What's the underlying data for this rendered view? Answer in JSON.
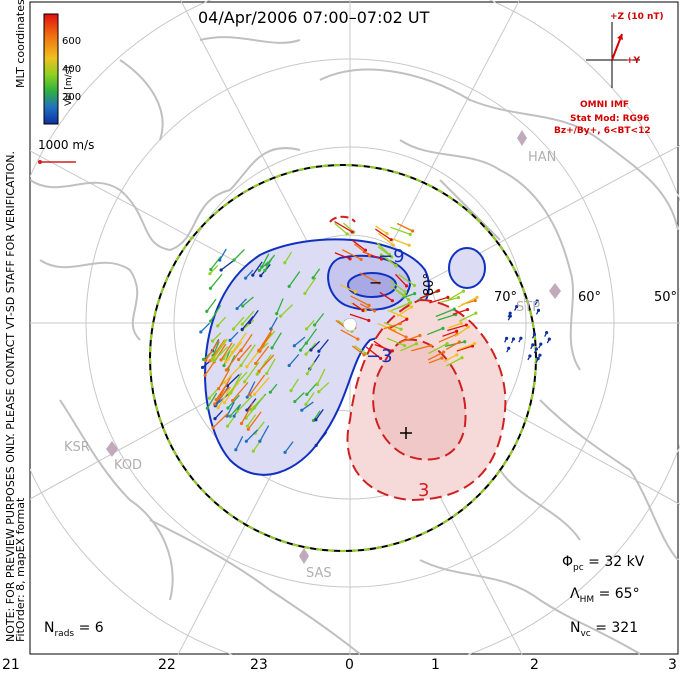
{
  "title": "04/Apr/2006 07:00–07:02 UT",
  "side_text": {
    "mlt_coords": "MLT coordinates",
    "preview_note": "NOTE: FOR PREVIEW PURPOSES ONLY. PLEASE CONTACT VT-SD STAFF FOR VERIFICATION.",
    "fit_info": "FitOrder: 8, mapEX format"
  },
  "colorbar": {
    "label": "Vel [m/s]",
    "ticks": [
      "600",
      "400",
      "200"
    ],
    "colors": [
      "#e01010",
      "#f07010",
      "#f0c020",
      "#90d020",
      "#30b040",
      "#2070c0",
      "#1030a0"
    ]
  },
  "vector_scale": {
    "label": "1000 m/s"
  },
  "imf": {
    "z_label": "+Z (10 nT)",
    "y_label": "+Y",
    "source": "OMNI IMF",
    "model": "Stat Mod: RG96",
    "condition": "Bz+/By+, 6<BT<12"
  },
  "stats": {
    "phi_pc": {
      "symbol": "Φ",
      "sub": "pc",
      "value": "= 32 kV"
    },
    "lambda_hm": {
      "symbol": "Λ",
      "sub": "HM",
      "value": "= 65°"
    },
    "n_vc": {
      "symbol": "N",
      "sub": "vc",
      "value": "= 321"
    },
    "n_rads": {
      "symbol": "N",
      "sub": "rads",
      "value": "= 6"
    }
  },
  "mlt_axis": [
    "21",
    "22",
    "23",
    "0",
    "1",
    "2",
    "3"
  ],
  "latitude_labels": [
    "80°",
    "70°",
    "60°",
    "50°"
  ],
  "stations": [
    "HAN",
    "KSR",
    "KOD",
    "SAS",
    "STP"
  ],
  "contour_labels": [
    "−9",
    "−3",
    "3"
  ],
  "potential_markers": {
    "min": "−",
    "max": "+"
  },
  "colors": {
    "negative_cell": "#1030c0",
    "positive_cell": "#d02020",
    "hm_boundary": "#000000",
    "hm_boundary_dash": "#90d020",
    "coastline": "#c0c0c0",
    "grid": "#c8c8c8",
    "imf": "#d40000"
  }
}
